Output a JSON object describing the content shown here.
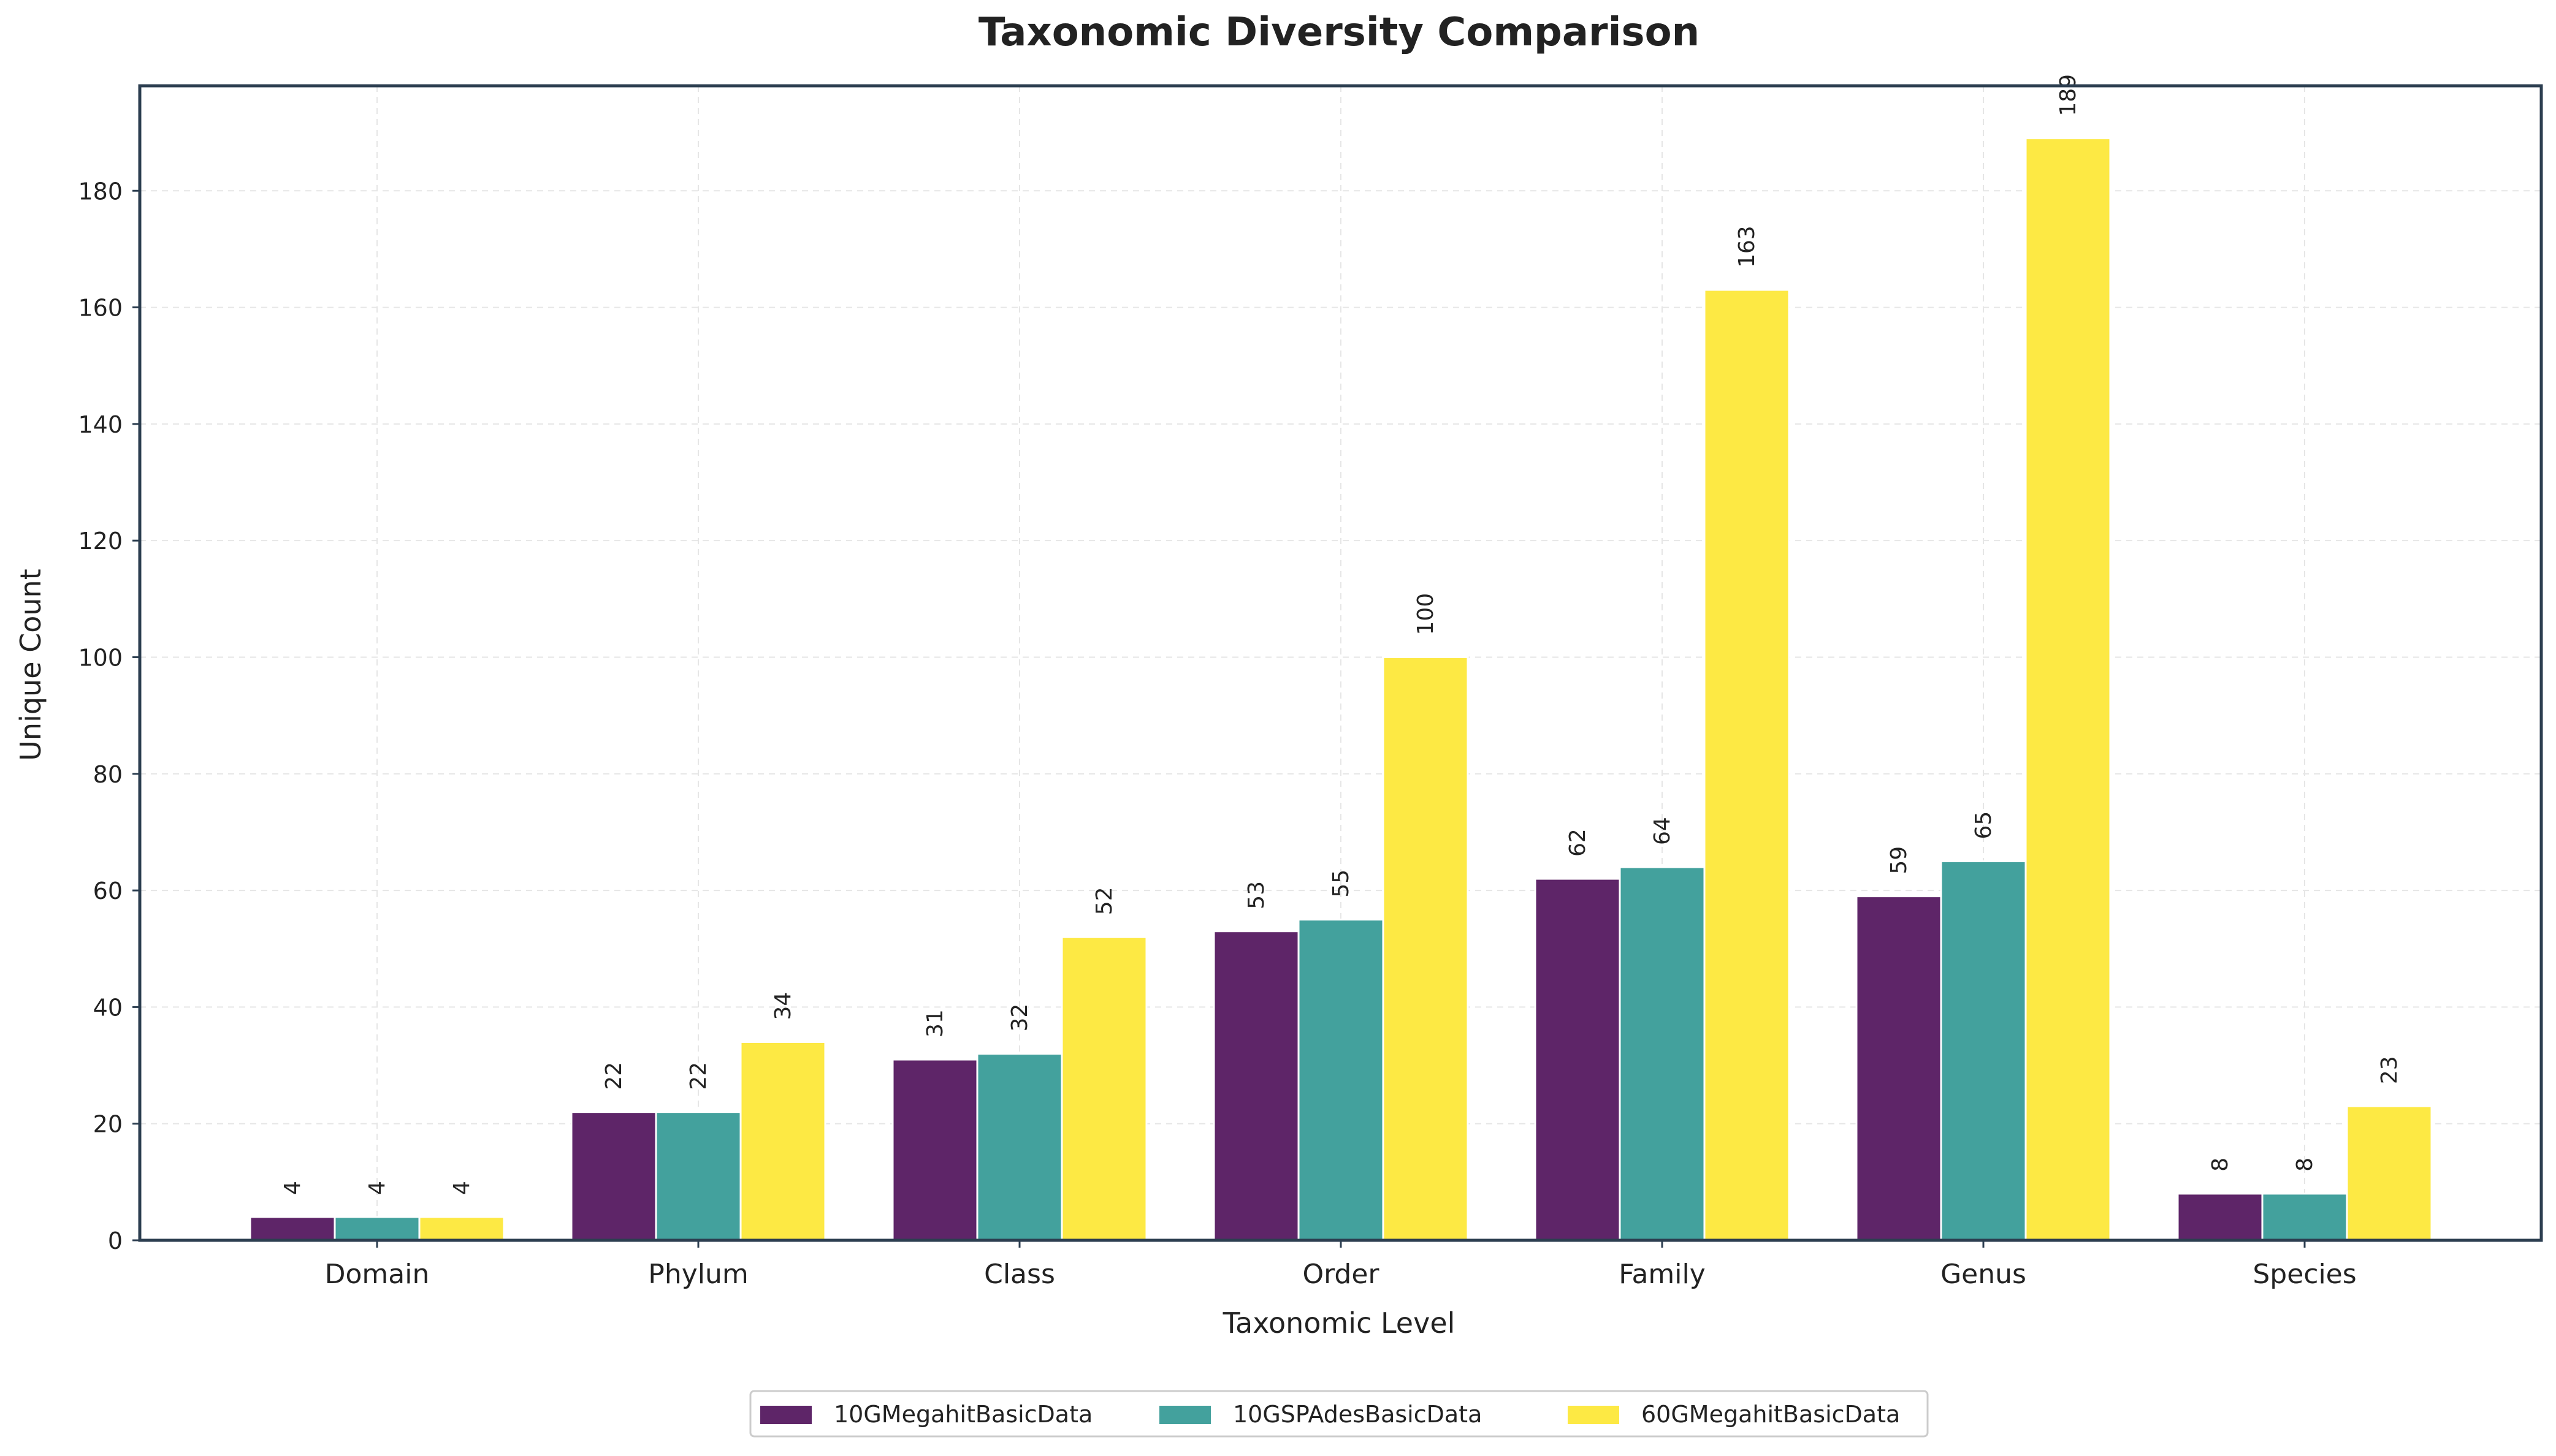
{
  "chart_data": {
    "type": "bar",
    "title": "Taxonomic Diversity Comparison",
    "xlabel": "Taxonomic Level",
    "ylabel": "Unique Count",
    "categories": [
      "Domain",
      "Phylum",
      "Class",
      "Order",
      "Family",
      "Genus",
      "Species"
    ],
    "series": [
      {
        "name": "10GMegahitBasicData",
        "color": "#5e2568",
        "values": [
          4,
          22,
          31,
          53,
          62,
          59,
          8
        ]
      },
      {
        "name": "10GSPAdesBasicData",
        "color": "#43a19d",
        "values": [
          4,
          22,
          32,
          55,
          64,
          65,
          8
        ]
      },
      {
        "name": "60GMegahitBasicData",
        "color": "#fde944",
        "values": [
          4,
          34,
          52,
          100,
          163,
          189,
          23
        ]
      }
    ],
    "yticks": [
      0,
      20,
      40,
      60,
      80,
      100,
      120,
      140,
      160,
      180
    ],
    "ylim": [
      0,
      198
    ],
    "grid": true,
    "legend_position": "bottom-center"
  }
}
